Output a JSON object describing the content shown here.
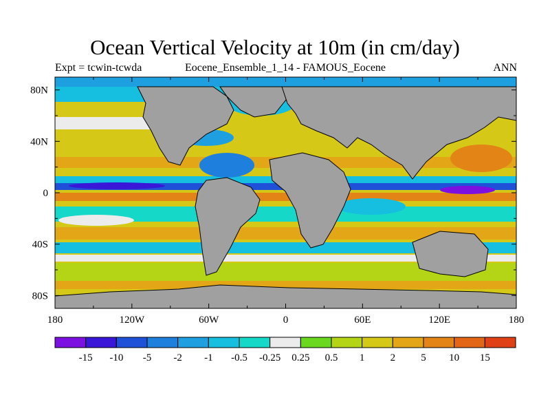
{
  "header": {
    "title": "Ocean Vertical Velocity at 10m (in cm/day)",
    "experiment": "Expt = tcwin-tcwda",
    "subtitle": "Eocene_Ensemble_1_14 - FAMOUS_Eocene",
    "season": "ANN"
  },
  "map": {
    "lat_range": [
      -90,
      90
    ],
    "lon_range": [
      -180,
      180
    ],
    "lat_ticks": [
      "80N",
      "40N",
      "0",
      "40S",
      "80S"
    ],
    "lat_tick_values": [
      80,
      40,
      0,
      -40,
      -80
    ],
    "lon_ticks": [
      "180",
      "120W",
      "60W",
      "0",
      "60E",
      "120E",
      "180"
    ],
    "lon_tick_values": [
      -180,
      -120,
      -60,
      0,
      60,
      120,
      180
    ],
    "land_color": "#a0a0a0",
    "coastline_color": "#000000"
  },
  "colorbar": {
    "labels": [
      "-15",
      "-10",
      "-5",
      "-2",
      "-1",
      "-0.5",
      "-0.25",
      "0.25",
      "0.5",
      "1",
      "2",
      "5",
      "10",
      "15"
    ],
    "colors": [
      "#7b10e0",
      "#3a16d8",
      "#1f50d8",
      "#1f7fdc",
      "#1ea0e0",
      "#16bfe0",
      "#16d8c8",
      "#ececec",
      "#6ad81e",
      "#b4d416",
      "#d6c816",
      "#e2a616",
      "#e28416",
      "#e26616",
      "#e04016"
    ]
  }
}
